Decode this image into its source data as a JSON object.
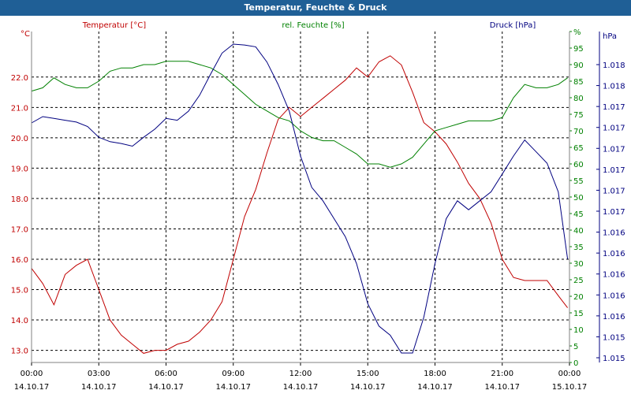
{
  "window": {
    "title": "Temperatur, Feuchte & Druck"
  },
  "chart_data": {
    "type": "line",
    "title": "Temperatur, Feuchte & Druck",
    "grid": true,
    "x_axis": {
      "range": [
        "2017-10-14 00:00",
        "2017-10-15 00:00"
      ],
      "ticks": [
        {
          "time": "00:00",
          "date": "14.10.17"
        },
        {
          "time": "03:00",
          "date": "14.10.17"
        },
        {
          "time": "06:00",
          "date": "14.10.17"
        },
        {
          "time": "09:00",
          "date": "14.10.17"
        },
        {
          "time": "12:00",
          "date": "14.10.17"
        },
        {
          "time": "15:00",
          "date": "14.10.17"
        },
        {
          "time": "18:00",
          "date": "14.10.17"
        },
        {
          "time": "21:00",
          "date": "14.10.17"
        },
        {
          "time": "00:00",
          "date": "15.10.17"
        }
      ]
    },
    "axes": {
      "temperature": {
        "unit": "°C",
        "label": "Temperatur [°C]",
        "color": "#c00000",
        "range": [
          12.6,
          23.5
        ],
        "ticks": [
          "13.0",
          "14.0",
          "15.0",
          "16.0",
          "17.0",
          "18.0",
          "19.0",
          "20.0",
          "21.0",
          "22.0"
        ]
      },
      "humidity": {
        "unit": "%",
        "label": "rel. Feuchte [%]",
        "color": "#008000",
        "range": [
          0,
          100
        ],
        "ticks": [
          "0",
          "5",
          "10",
          "15",
          "20",
          "25",
          "30",
          "35",
          "40",
          "45",
          "50",
          "55",
          "60",
          "65",
          "70",
          "75",
          "80",
          "85",
          "90",
          "95",
          "%"
        ]
      },
      "pressure": {
        "unit": "hPa",
        "label": "Druck [hPa]",
        "color": "#000080",
        "ticks": [
          "1.015",
          "1.015",
          "1.016",
          "1.016",
          "1.016",
          "1.016",
          "1.016",
          "1.017",
          "1.017",
          "1.017",
          "1.017",
          "1.017",
          "1.017",
          "1.018",
          "1.018"
        ]
      }
    },
    "series": [
      {
        "name": "Temperatur [°C]",
        "axis": "temperature",
        "color": "#c00000",
        "x": [
          "00:00",
          "00:30",
          "01:00",
          "01:30",
          "02:00",
          "02:30",
          "03:00",
          "03:30",
          "04:00",
          "04:30",
          "05:00",
          "05:30",
          "06:00",
          "06:30",
          "07:00",
          "07:30",
          "08:00",
          "08:30",
          "09:00",
          "09:30",
          "10:00",
          "10:30",
          "11:00",
          "11:30",
          "12:00",
          "12:30",
          "13:00",
          "13:30",
          "14:00",
          "14:30",
          "15:00",
          "15:30",
          "16:00",
          "16:30",
          "17:00",
          "17:30",
          "18:00",
          "18:30",
          "19:00",
          "19:30",
          "20:00",
          "20:30",
          "21:00",
          "21:30",
          "22:00",
          "22:30",
          "23:00",
          "23:30",
          "23:55"
        ],
        "values": [
          15.7,
          15.2,
          14.5,
          15.5,
          15.8,
          16.0,
          15.0,
          14.0,
          13.5,
          13.2,
          12.9,
          13.0,
          13.0,
          13.2,
          13.3,
          13.6,
          14.0,
          14.6,
          16.0,
          17.4,
          18.3,
          19.5,
          20.6,
          21.0,
          20.7,
          21.0,
          21.3,
          21.6,
          21.9,
          22.3,
          22.0,
          22.5,
          22.7,
          22.4,
          21.5,
          20.5,
          20.2,
          19.8,
          19.2,
          18.5,
          18.0,
          17.2,
          16.0,
          15.4,
          15.3,
          15.3,
          15.3,
          14.8,
          14.4
        ]
      },
      {
        "name": "rel. Feuchte [%]",
        "axis": "humidity",
        "color": "#008000",
        "x": [
          "00:00",
          "00:30",
          "01:00",
          "01:30",
          "02:00",
          "02:30",
          "03:00",
          "03:30",
          "04:00",
          "04:30",
          "05:00",
          "05:30",
          "06:00",
          "06:30",
          "07:00",
          "07:30",
          "08:00",
          "08:30",
          "09:00",
          "09:30",
          "10:00",
          "10:30",
          "11:00",
          "11:30",
          "12:00",
          "12:30",
          "13:00",
          "13:30",
          "14:00",
          "14:30",
          "15:00",
          "15:30",
          "16:00",
          "16:30",
          "17:00",
          "17:30",
          "18:00",
          "18:30",
          "19:00",
          "19:30",
          "20:00",
          "20:30",
          "21:00",
          "21:30",
          "22:00",
          "22:30",
          "23:00",
          "23:30",
          "23:55"
        ],
        "values": [
          82,
          83,
          86,
          84,
          83,
          83,
          85,
          88,
          89,
          89,
          90,
          90,
          91,
          91,
          91,
          90,
          89,
          87,
          84,
          81,
          78,
          76,
          74,
          73,
          70,
          68,
          67,
          67,
          65,
          63,
          60,
          60,
          59,
          60,
          62,
          66,
          70,
          71,
          72,
          73,
          73,
          73,
          74,
          80,
          84,
          83,
          83,
          84,
          86
        ]
      },
      {
        "name": "Druck [hPa]",
        "axis": "pressure",
        "color": "#000080",
        "x": [
          "00:00",
          "00:30",
          "01:00",
          "01:30",
          "02:00",
          "02:30",
          "03:00",
          "03:30",
          "04:00",
          "04:30",
          "05:00",
          "05:30",
          "06:00",
          "06:30",
          "07:00",
          "07:30",
          "08:00",
          "08:30",
          "09:00",
          "09:30",
          "10:00",
          "10:30",
          "11:00",
          "11:30",
          "12:00",
          "12:30",
          "13:00",
          "13:30",
          "14:00",
          "14:30",
          "15:00",
          "15:30",
          "16:00",
          "16:30",
          "17:00",
          "17:30",
          "18:00",
          "18:30",
          "19:00",
          "19:30",
          "20:00",
          "20:30",
          "21:00",
          "21:30",
          "22:00",
          "22:30",
          "23:00",
          "23:30",
          "23:55"
        ],
        "values": [
          1.01677,
          1.01684,
          1.01682,
          1.0168,
          1.01678,
          1.01673,
          1.01661,
          1.01656,
          1.01654,
          1.01651,
          1.01661,
          1.0167,
          1.01682,
          1.0168,
          1.0169,
          1.01708,
          1.01732,
          1.01755,
          1.01765,
          1.01764,
          1.01762,
          1.01745,
          1.0172,
          1.0169,
          1.0164,
          1.01605,
          1.0159,
          1.0157,
          1.0155,
          1.0152,
          1.01475,
          1.0145,
          1.0144,
          1.0142,
          1.0142,
          1.0146,
          1.0152,
          1.0157,
          1.0159,
          1.0158,
          1.0159,
          1.016,
          1.0162,
          1.0164,
          1.01658,
          1.01645,
          1.01632,
          1.016,
          1.01525
        ]
      }
    ]
  }
}
